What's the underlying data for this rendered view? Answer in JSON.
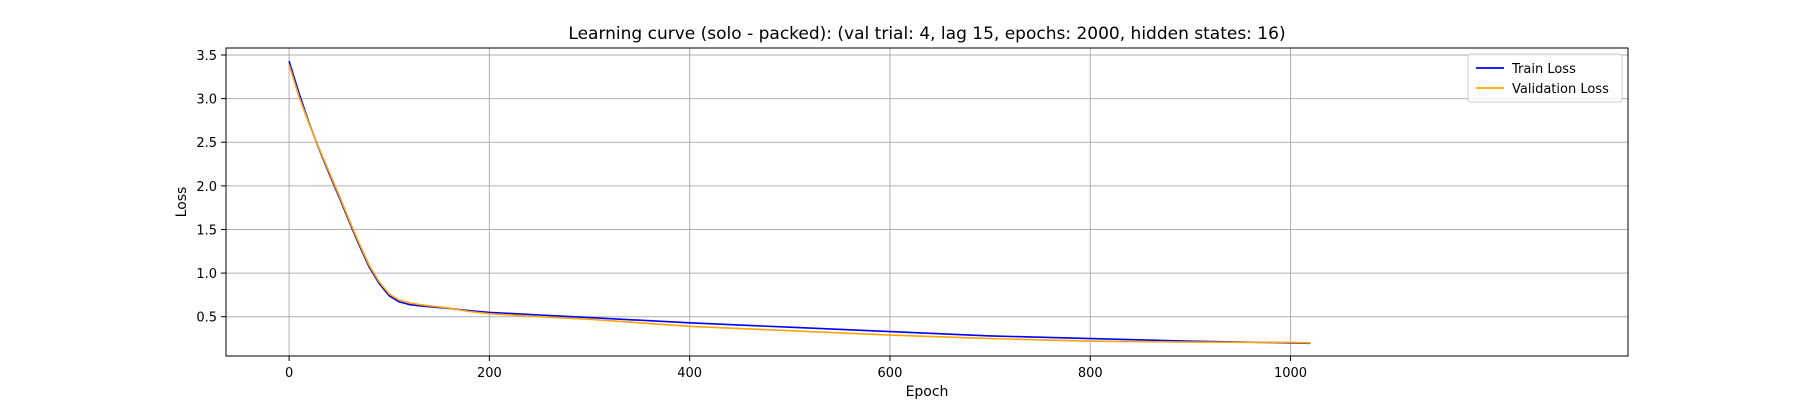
{
  "chart_data": {
    "type": "line",
    "title": "Learning curve (solo - packed): (val trial: 4, lag 15, epochs: 2000, hidden states: 16)",
    "xlabel": "Epoch",
    "ylabel": "Loss",
    "xlim": [
      -63,
      1337
    ],
    "ylim": [
      0.05,
      3.58
    ],
    "xticks": [
      {
        "value": 0,
        "label": "0"
      },
      {
        "value": 200,
        "label": "200"
      },
      {
        "value": 400,
        "label": "400"
      },
      {
        "value": 600,
        "label": "600"
      },
      {
        "value": 800,
        "label": "800"
      },
      {
        "value": 1000,
        "label": "1000"
      }
    ],
    "yticks": [
      {
        "value": 0.5,
        "label": "0.5"
      },
      {
        "value": 1.0,
        "label": "1.0"
      },
      {
        "value": 1.5,
        "label": "1.5"
      },
      {
        "value": 2.0,
        "label": "2.0"
      },
      {
        "value": 2.5,
        "label": "2.5"
      },
      {
        "value": 3.0,
        "label": "3.0"
      },
      {
        "value": 3.5,
        "label": "3.5"
      }
    ],
    "grid": true,
    "legend_position": "top-right",
    "series": [
      {
        "name": "Train Loss",
        "color": "#0000ff",
        "x": [
          0,
          10,
          20,
          30,
          40,
          50,
          60,
          70,
          80,
          90,
          100,
          110,
          120,
          130,
          140,
          150,
          160,
          180,
          200,
          250,
          300,
          400,
          500,
          600,
          700,
          800,
          900,
          1000,
          1020
        ],
        "y": [
          3.43,
          3.06,
          2.72,
          2.42,
          2.14,
          1.87,
          1.59,
          1.32,
          1.07,
          0.88,
          0.74,
          0.67,
          0.64,
          0.625,
          0.615,
          0.605,
          0.595,
          0.57,
          0.55,
          0.52,
          0.49,
          0.43,
          0.38,
          0.33,
          0.28,
          0.25,
          0.22,
          0.2,
          0.195
        ]
      },
      {
        "name": "Validation Loss",
        "color": "#ffa500",
        "x": [
          0,
          10,
          20,
          30,
          40,
          50,
          60,
          70,
          80,
          90,
          100,
          110,
          120,
          130,
          140,
          150,
          160,
          180,
          200,
          250,
          300,
          400,
          500,
          600,
          700,
          800,
          900,
          1000,
          1020
        ],
        "y": [
          3.39,
          3.02,
          2.71,
          2.43,
          2.16,
          1.89,
          1.61,
          1.34,
          1.09,
          0.9,
          0.76,
          0.69,
          0.66,
          0.64,
          0.625,
          0.612,
          0.598,
          0.56,
          0.535,
          0.5,
          0.47,
          0.39,
          0.34,
          0.29,
          0.25,
          0.22,
          0.21,
          0.205,
          0.2
        ]
      }
    ]
  }
}
